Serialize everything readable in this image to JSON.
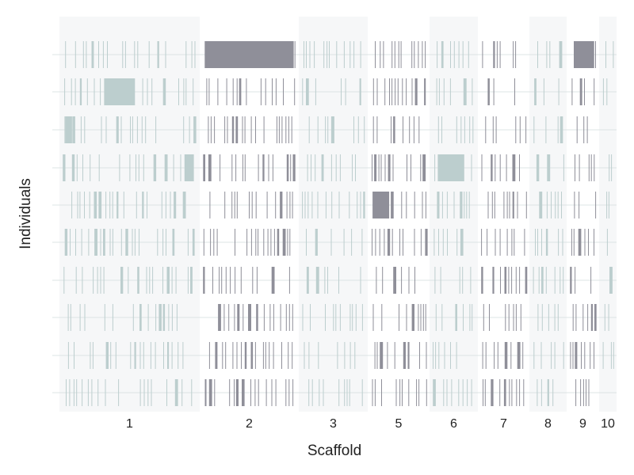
{
  "chart_data": {
    "type": "heatmap",
    "title": "",
    "xlabel": "Scaffold",
    "ylabel": "Individuals",
    "scaffold_labels": [
      "1",
      "2",
      "3",
      "5",
      "6",
      "7",
      "8",
      "9",
      "10"
    ],
    "individual_count": 10,
    "band_shading": [
      "shaded",
      "plain",
      "shaded",
      "plain",
      "shaded",
      "plain",
      "shaded",
      "plain",
      "shaded"
    ],
    "segment_colors": {
      "shaded": "#bccece",
      "plain": "#8f8f99"
    },
    "band_background": "#f6f7f8",
    "gridline_color": "#d3dcdc",
    "grid": true,
    "legend": "none",
    "scaffold_marker_density": [
      0.45,
      0.5,
      0.4,
      0.55,
      0.45,
      0.5,
      0.45,
      0.45,
      0.35
    ],
    "block_segments": [
      {
        "scaffold": "2",
        "individual": 1,
        "start": 0.02,
        "end": 0.98
      },
      {
        "scaffold": "1",
        "individual": 2,
        "start": 0.31,
        "end": 0.54
      },
      {
        "scaffold": "1",
        "individual": 3,
        "start": 0.02,
        "end": 0.07
      },
      {
        "scaffold": "1",
        "individual": 4,
        "start": 0.91,
        "end": 0.98
      },
      {
        "scaffold": "5",
        "individual": 5,
        "start": 0.03,
        "end": 0.33
      },
      {
        "scaffold": "6",
        "individual": 4,
        "start": 0.12,
        "end": 0.75
      },
      {
        "scaffold": "9",
        "individual": 1,
        "start": 0.15,
        "end": 0.93
      }
    ]
  }
}
